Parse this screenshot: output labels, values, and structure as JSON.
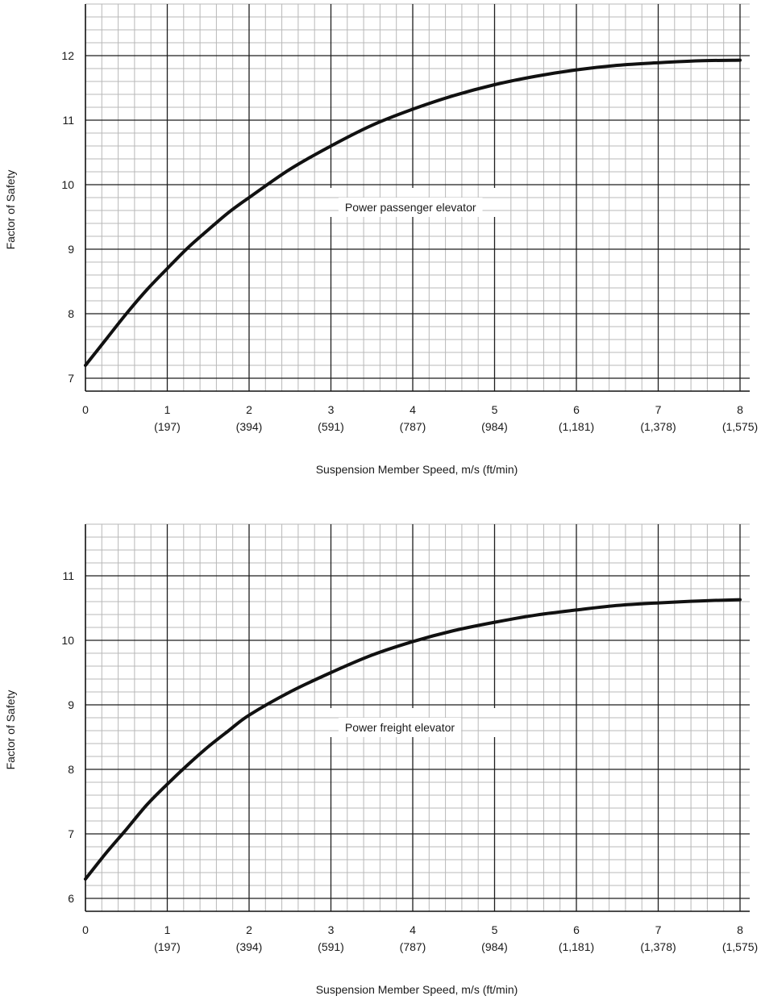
{
  "chart_data": [
    {
      "type": "line",
      "title": "",
      "xlabel": "Suspension Member Speed, m/s (ft/min)",
      "ylabel": "Factor of Safety",
      "xlim": [
        0,
        8
      ],
      "ylim": [
        6.8,
        12.8
      ],
      "grid": true,
      "x_ticks": [
        "0",
        "1",
        "2",
        "3",
        "4",
        "5",
        "6",
        "7",
        "8"
      ],
      "x_ticks_secondary": [
        "",
        "(197)",
        "(394)",
        "(591)",
        "(787)",
        "(984)",
        "(1,181)",
        "(1,378)",
        "(1,575)"
      ],
      "y_ticks": [
        "7",
        "8",
        "9",
        "10",
        "11",
        "12"
      ],
      "annotation": "Power passenger elevator",
      "series": [
        {
          "name": "Power passenger elevator",
          "x": [
            0,
            0.25,
            0.5,
            0.75,
            1,
            1.25,
            1.5,
            1.75,
            2,
            2.5,
            3,
            3.5,
            4,
            4.5,
            5,
            5.5,
            6,
            6.5,
            7,
            7.5,
            8
          ],
          "values": [
            7.2,
            7.6,
            8.0,
            8.37,
            8.7,
            9.02,
            9.3,
            9.57,
            9.8,
            10.24,
            10.6,
            10.92,
            11.17,
            11.38,
            11.55,
            11.68,
            11.78,
            11.85,
            11.89,
            11.92,
            11.93
          ]
        }
      ]
    },
    {
      "type": "line",
      "title": "",
      "xlabel": "Suspension Member Speed, m/s (ft/min)",
      "ylabel": "Factor of Safety",
      "xlim": [
        0,
        8
      ],
      "ylim": [
        5.8,
        11.8
      ],
      "grid": true,
      "x_ticks": [
        "0",
        "1",
        "2",
        "3",
        "4",
        "5",
        "6",
        "7",
        "8"
      ],
      "x_ticks_secondary": [
        "",
        "(197)",
        "(394)",
        "(591)",
        "(787)",
        "(984)",
        "(1,181)",
        "(1,378)",
        "(1,575)"
      ],
      "y_ticks": [
        "6",
        "7",
        "8",
        "9",
        "10",
        "11"
      ],
      "annotation": "Power freight elevator",
      "series": [
        {
          "name": "Power freight elevator",
          "x": [
            0,
            0.25,
            0.5,
            0.75,
            1,
            1.25,
            1.5,
            1.75,
            2,
            2.5,
            3,
            3.5,
            4,
            4.5,
            5,
            5.5,
            6,
            6.5,
            7,
            7.5,
            8
          ],
          "values": [
            6.3,
            6.7,
            7.07,
            7.45,
            7.77,
            8.07,
            8.35,
            8.6,
            8.84,
            9.2,
            9.5,
            9.77,
            9.98,
            10.15,
            10.28,
            10.39,
            10.47,
            10.54,
            10.58,
            10.61,
            10.63
          ]
        }
      ]
    }
  ]
}
